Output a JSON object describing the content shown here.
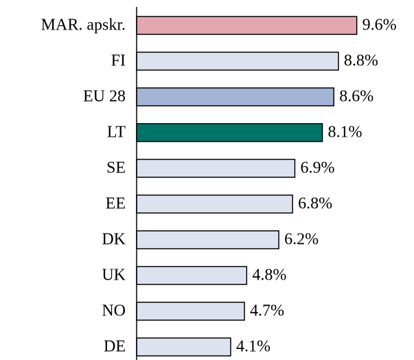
{
  "chart_data": {
    "type": "bar",
    "orientation": "horizontal",
    "categories": [
      "MAR. apskr.",
      "FI",
      "EU 28",
      "LT",
      "SE",
      "EE",
      "DK",
      "UK",
      "NO",
      "DE"
    ],
    "values": [
      9.6,
      8.8,
      8.6,
      8.1,
      6.9,
      6.8,
      6.2,
      4.8,
      4.7,
      4.1
    ],
    "value_labels": [
      "9.6%",
      "8.8%",
      "8.6%",
      "8.1%",
      "6.9%",
      "6.8%",
      "6.2%",
      "4.8%",
      "4.7%",
      "4.1%"
    ],
    "colors": [
      "#e3a7b1",
      "#dce3ee",
      "#a3b4d4",
      "#007566",
      "#dce3ee",
      "#dce3ee",
      "#dce3ee",
      "#dce3ee",
      "#dce3ee",
      "#dce3ee"
    ],
    "xlim": [
      0,
      10
    ]
  }
}
